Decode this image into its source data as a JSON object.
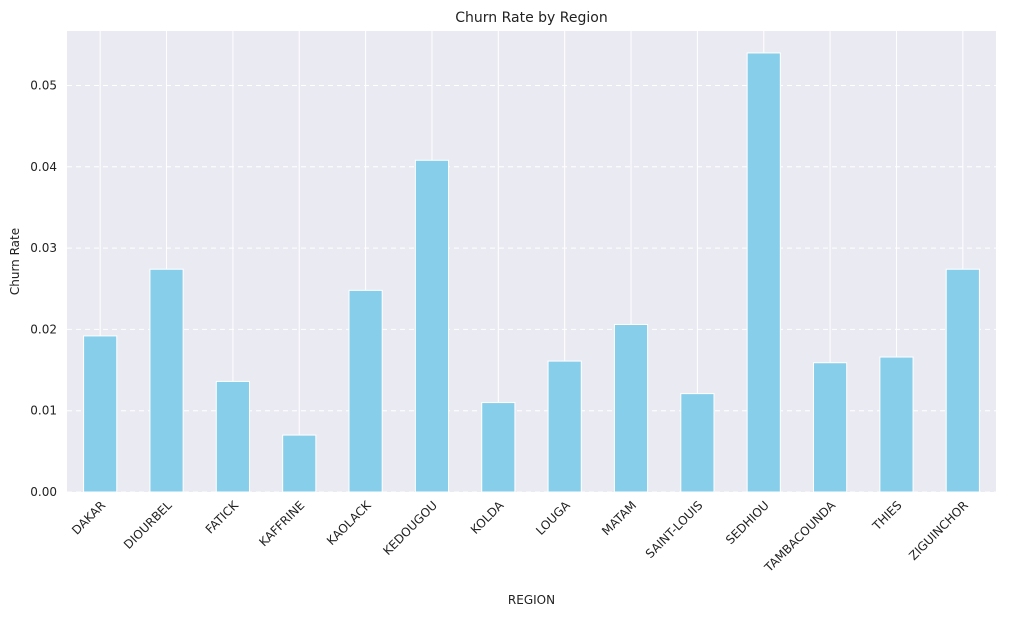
{
  "chart_data": {
    "type": "bar",
    "title": "Churn Rate by Region",
    "xlabel": "REGION",
    "ylabel": "Churn Rate",
    "categories": [
      "DAKAR",
      "DIOURBEL",
      "FATICK",
      "KAFFRINE",
      "KAOLACK",
      "KEDOUGOU",
      "KOLDA",
      "LOUGA",
      "MATAM",
      "SAINT-LOUIS",
      "SEDHIOU",
      "TAMBACOUNDA",
      "THIES",
      "ZIGUINCHOR"
    ],
    "values": [
      0.0192,
      0.0274,
      0.0136,
      0.007,
      0.0248,
      0.0408,
      0.011,
      0.0161,
      0.0206,
      0.0121,
      0.054,
      0.0159,
      0.0166,
      0.0274
    ],
    "ylim": [
      0,
      0.0567
    ],
    "yticks": [
      "0.00",
      "0.01",
      "0.02",
      "0.03",
      "0.04",
      "0.05"
    ],
    "grid": true,
    "bar_color": "#87CEEB",
    "plot_background": "#EAEAF2",
    "gridline_color": "#FFFFFF"
  }
}
